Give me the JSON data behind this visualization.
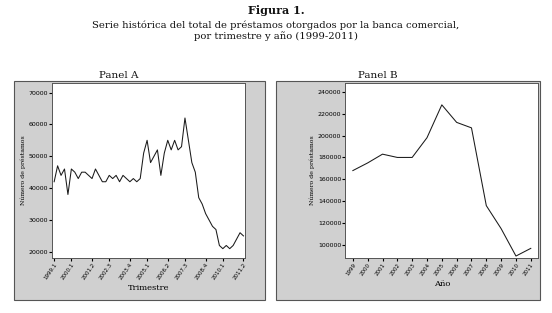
{
  "title_bold": "Figura 1.",
  "subtitle": "Serie histórica del total de préstamos otorgados por la banca comercial,\npor trimestre y año (1999-2011)",
  "panel_a_label": "Panel A",
  "panel_b_label": "Panel B",
  "panel_a_xlabel": "Trimestre",
  "panel_a_ylabel": "Número de préstamos",
  "panel_b_xlabel": "Año",
  "panel_b_ylabel": "Número de préstamos",
  "panel_a_yticks": [
    20000,
    30000,
    40000,
    50000,
    60000,
    70000
  ],
  "panel_b_yticks": [
    100000,
    120000,
    140000,
    160000,
    180000,
    200000,
    220000,
    240000
  ],
  "panel_a_xtick_labels": [
    "1999.1",
    "2000.1",
    "2001.2",
    "2002.3",
    "2003.4",
    "2005.1",
    "2006.2",
    "2007.3",
    "2008.4",
    "2010.1",
    "2011.2"
  ],
  "panel_b_xtick_labels": [
    "1999",
    "2000",
    "2001",
    "2002",
    "2003",
    "2004",
    "2005",
    "2006",
    "2007",
    "2008",
    "2009",
    "2010",
    "2011"
  ],
  "panel_a_data": [
    42000,
    47000,
    44000,
    46000,
    38000,
    46000,
    45000,
    43000,
    45000,
    45000,
    44000,
    43000,
    46000,
    44000,
    42000,
    42000,
    44000,
    43000,
    44000,
    42000,
    44000,
    43000,
    42000,
    43000,
    42000,
    43000,
    51000,
    55000,
    48000,
    50000,
    52000,
    44000,
    51000,
    55000,
    52000,
    55000,
    52000,
    53000,
    62000,
    55000,
    48000,
    45000,
    37000,
    35000,
    32000,
    30000,
    28000,
    27000,
    22000,
    21000,
    22000,
    21000,
    22000,
    24000,
    26000,
    25000
  ],
  "panel_b_years": [
    1999,
    2000,
    2001,
    2002,
    2003,
    2004,
    2005,
    2006,
    2007,
    2008,
    2009,
    2010,
    2011
  ],
  "panel_b_y": [
    168000,
    175000,
    183000,
    180000,
    180000,
    198000,
    228000,
    212000,
    207000,
    136000,
    115000,
    90000,
    97000
  ],
  "outer_bg_color": "#d0d0d0",
  "plot_bg_color": "#ffffff",
  "line_color": "#1a1a1a",
  "fig_bg_color": "#ffffff",
  "border_color": "#555555"
}
